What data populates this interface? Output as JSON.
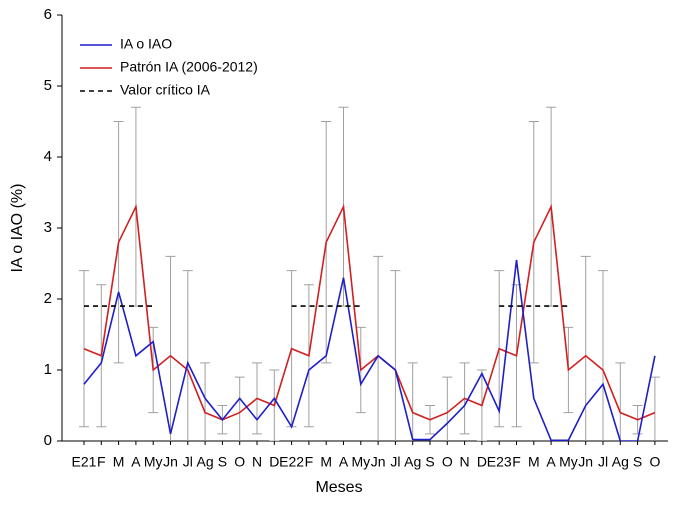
{
  "chart_data": {
    "type": "line",
    "y_label": "IA o IAO (%)",
    "x_label": "Meses",
    "categories": [
      "E21",
      "F",
      "M",
      "A",
      "My",
      "Jn",
      "Jl",
      "Ag",
      "S",
      "O",
      "N",
      "D",
      "E22",
      "F",
      "M",
      "A",
      "My",
      "Jn",
      "Jl",
      "Ag",
      "S",
      "O",
      "N",
      "D",
      "E23",
      "F",
      "M",
      "A",
      "My",
      "Jn",
      "Jl",
      "Ag",
      "S",
      "O"
    ],
    "series": [
      {
        "name": "IA o IAO",
        "color": "#1f1fc8",
        "dash": false,
        "values": [
          0.8,
          1.1,
          2.1,
          1.2,
          1.4,
          0.1,
          1.1,
          0.6,
          0.3,
          0.6,
          0.3,
          0.6,
          0.2,
          1.0,
          1.2,
          2.3,
          0.8,
          1.2,
          1.0,
          0.02,
          0.02,
          0.25,
          0.5,
          0.95,
          0.42,
          2.55,
          0.6,
          0.01,
          0.01,
          0.5,
          0.8,
          0,
          0,
          1.2
        ]
      },
      {
        "name": "Patrón IA (2006-2012)",
        "color": "#d21f1f",
        "dash": false,
        "values": [
          1.3,
          1.2,
          2.8,
          3.3,
          1.0,
          1.2,
          1.0,
          0.4,
          0.3,
          0.4,
          0.6,
          0.5,
          1.3,
          1.2,
          2.8,
          3.3,
          1.0,
          1.2,
          1.0,
          0.4,
          0.3,
          0.4,
          0.6,
          0.5,
          1.3,
          1.2,
          2.8,
          3.3,
          1.0,
          1.2,
          1.0,
          0.4,
          0.3,
          0.4
        ],
        "errors": [
          1.1,
          1.0,
          1.7,
          1.4,
          0.6,
          1.4,
          1.4,
          0.7,
          0.2,
          0.5,
          0.5,
          0.5,
          1.1,
          1.0,
          1.7,
          1.4,
          0.6,
          1.4,
          1.4,
          0.7,
          0.2,
          0.5,
          0.5,
          0.5,
          1.1,
          1.0,
          1.7,
          1.4,
          0.6,
          1.4,
          1.4,
          0.7,
          0.2,
          0.5
        ],
        "error_color": "#a0a0a0"
      },
      {
        "name": "Valor crítico IA",
        "color": "#000000",
        "dash": true,
        "values": [
          1.9,
          1.9,
          1.9,
          1.9,
          1.9,
          null,
          null,
          null,
          null,
          null,
          null,
          null,
          1.9,
          1.9,
          1.9,
          1.9,
          1.9,
          null,
          null,
          null,
          null,
          null,
          null,
          null,
          1.9,
          1.9,
          1.9,
          1.9,
          1.9,
          null,
          null,
          null,
          null,
          null
        ]
      }
    ],
    "ylim": [
      0,
      6
    ],
    "yticks": [
      0,
      1,
      2,
      3,
      4,
      5,
      6
    ],
    "legend": "upper-left"
  }
}
